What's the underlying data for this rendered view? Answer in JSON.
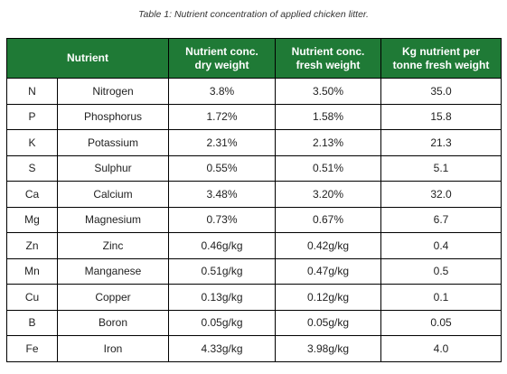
{
  "caption": "Table 1: Nutrient concentration of applied chicken litter.",
  "headers": {
    "nutrient": "Nutrient",
    "dry_line1": "Nutrient conc.",
    "dry_line2": "dry weight",
    "fresh_line1": "Nutrient conc.",
    "fresh_line2": "fresh weight",
    "kg_line1": "Kg nutrient per",
    "kg_line2": "tonne fresh weight"
  },
  "rows": [
    {
      "symbol": "N",
      "name": "Nitrogen",
      "dry": "3.8%",
      "fresh": "3.50%",
      "kg": "35.0"
    },
    {
      "symbol": "P",
      "name": "Phosphorus",
      "dry": "1.72%",
      "fresh": "1.58%",
      "kg": "15.8"
    },
    {
      "symbol": "K",
      "name": "Potassium",
      "dry": "2.31%",
      "fresh": "2.13%",
      "kg": "21.3"
    },
    {
      "symbol": "S",
      "name": "Sulphur",
      "dry": "0.55%",
      "fresh": "0.51%",
      "kg": "5.1"
    },
    {
      "symbol": "Ca",
      "name": "Calcium",
      "dry": "3.48%",
      "fresh": "3.20%",
      "kg": "32.0"
    },
    {
      "symbol": "Mg",
      "name": "Magnesium",
      "dry": "0.73%",
      "fresh": "0.67%",
      "kg": "6.7"
    },
    {
      "symbol": "Zn",
      "name": "Zinc",
      "dry": "0.46g/kg",
      "fresh": "0.42g/kg",
      "kg": "0.4"
    },
    {
      "symbol": "Mn",
      "name": "Manganese",
      "dry": "0.51g/kg",
      "fresh": "0.47g/kg",
      "kg": "0.5"
    },
    {
      "symbol": "Cu",
      "name": "Copper",
      "dry": "0.13g/kg",
      "fresh": "0.12g/kg",
      "kg": "0.1"
    },
    {
      "symbol": "B",
      "name": "Boron",
      "dry": "0.05g/kg",
      "fresh": "0.05g/kg",
      "kg": "0.05"
    },
    {
      "symbol": "Fe",
      "name": "Iron",
      "dry": "4.33g/kg",
      "fresh": "3.98g/kg",
      "kg": "4.0"
    }
  ],
  "colors": {
    "header_background": "#1f7a36",
    "header_text": "#ffffff",
    "border": "#000000"
  }
}
